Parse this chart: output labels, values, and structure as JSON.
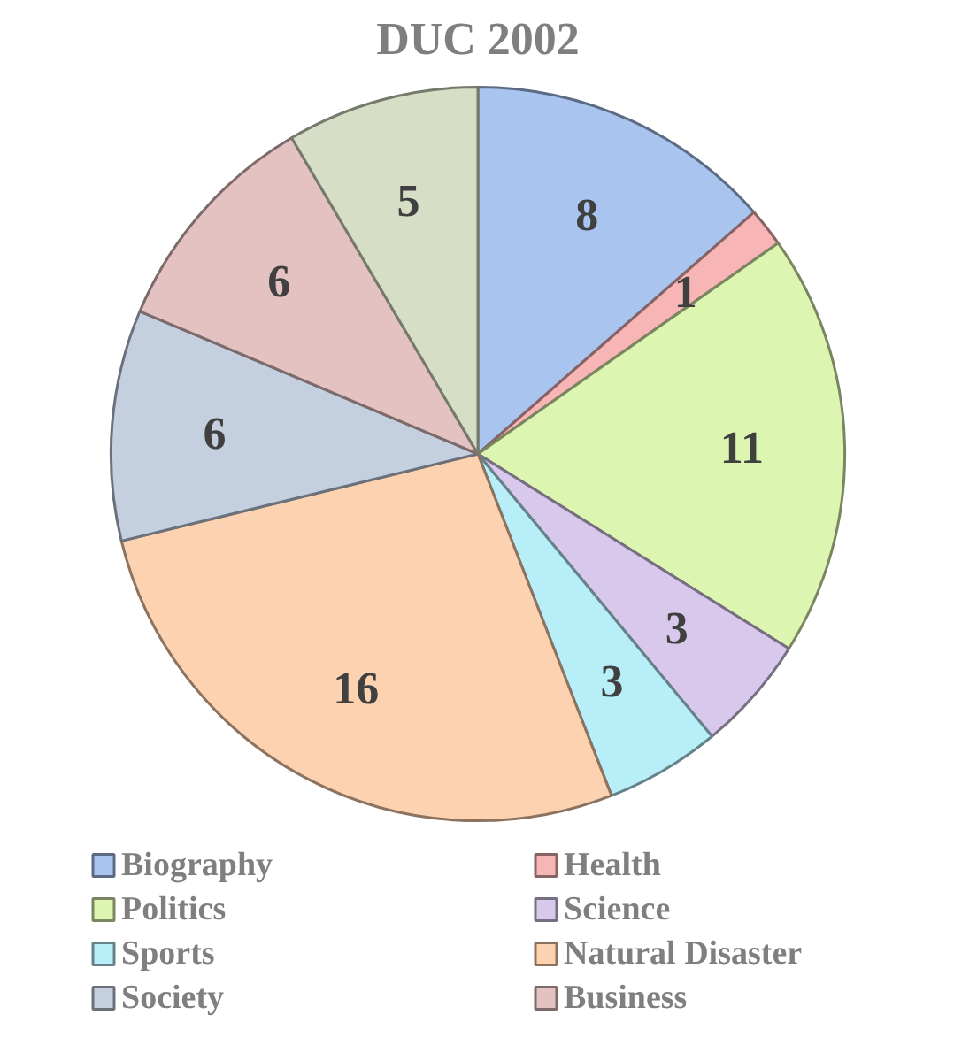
{
  "chart_data": {
    "type": "pie",
    "title": "DUC 2002",
    "categories": [
      "Biography",
      "Health",
      "Politics",
      "Science",
      "Sports",
      "Natural Disaster",
      "Society",
      "Business",
      null
    ],
    "values": [
      8,
      1,
      11,
      3,
      3,
      16,
      6,
      6,
      5
    ],
    "colors": [
      "#a9c4ef",
      "#f7b5b5",
      "#dcf5b0",
      "#d8c8ec",
      "#b8eef8",
      "#fdd2b0",
      "#c4cfe0",
      "#e5c2c2",
      "#d6dec6"
    ],
    "data_labels": true,
    "legend": "bottom"
  }
}
